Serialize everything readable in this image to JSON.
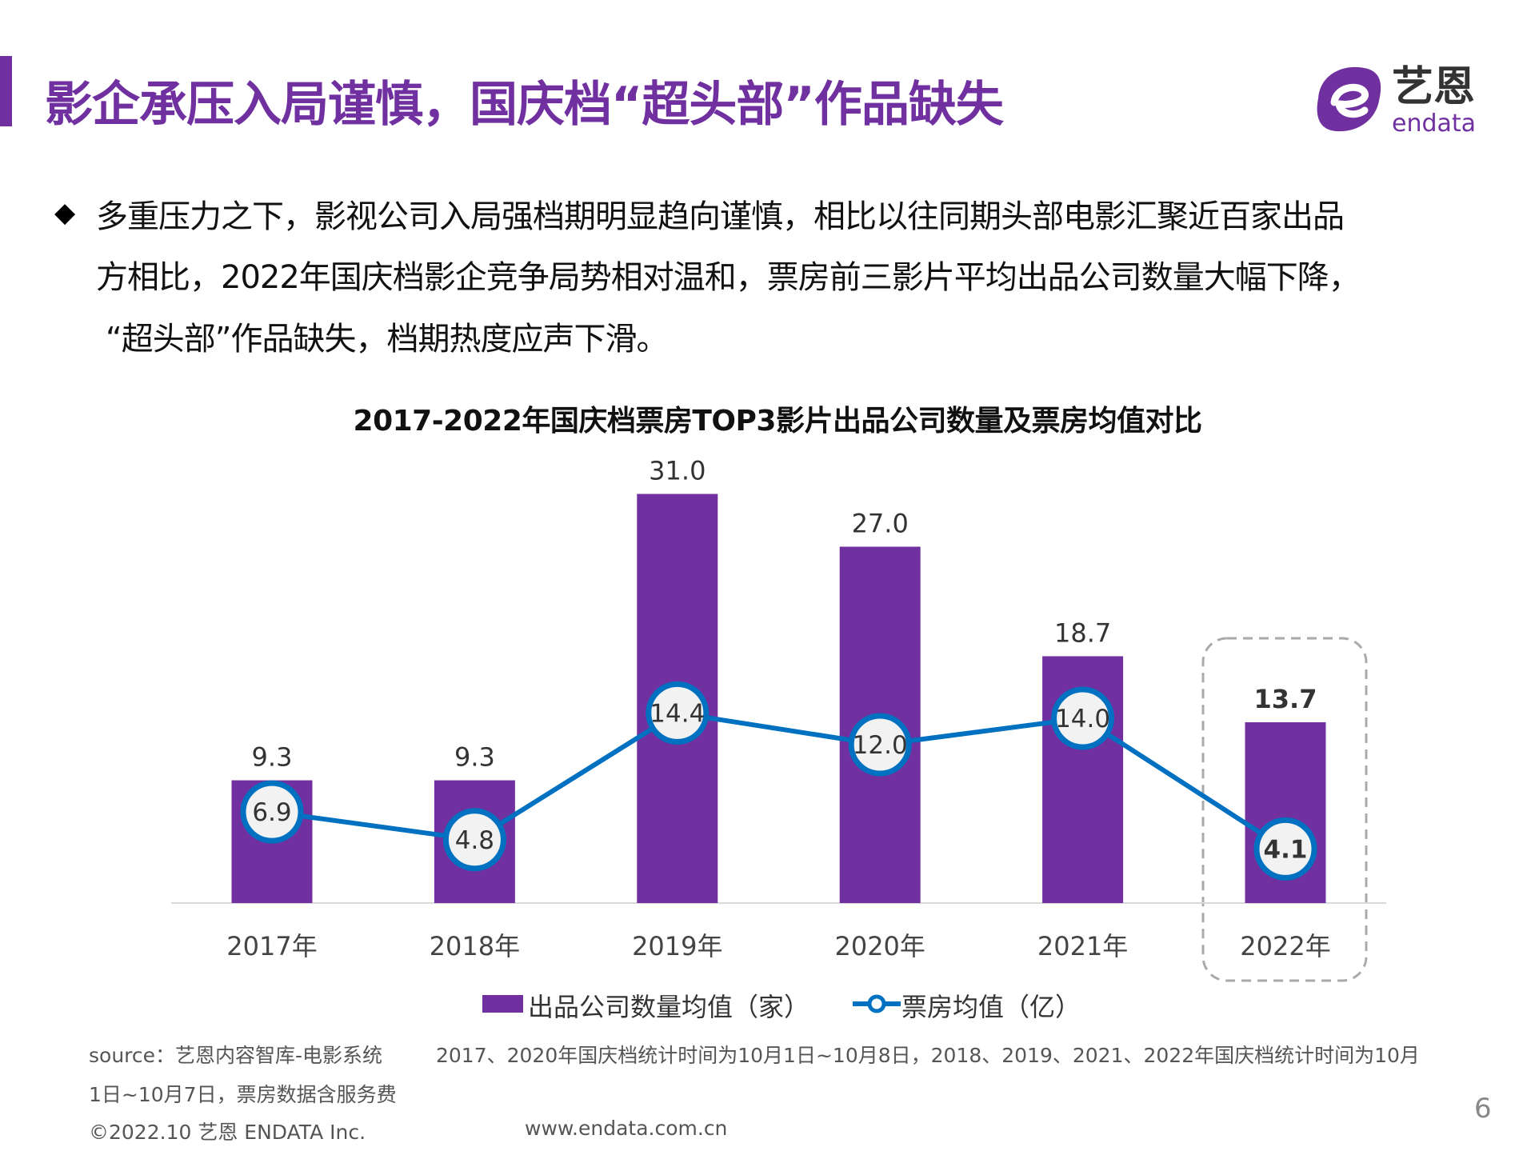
{
  "header": {
    "title": "影企承压入局谨慎，国庆档“超头部”作品缺失",
    "logo_text_cn": "艺恩",
    "logo_text_en": "endata"
  },
  "bullet": {
    "icon": "diamond-icon",
    "lines": [
      "多重压力之下，影视公司入局强档期明显趋向谨慎，相比以往同期头部电影汇聚近百家出品",
      "方相比，2022年国庆档影企竞争局势相对温和，票房前三影片平均出品公司数量大幅下降，",
      "“超头部”作品缺失，档期热度应声下滑。"
    ]
  },
  "chart_data": {
    "type": "bar+line",
    "title": "2017-2022年国庆档票房TOP3影片出品公司数量及票房均值对比",
    "categories": [
      "2017年",
      "2018年",
      "2019年",
      "2020年",
      "2021年",
      "2022年"
    ],
    "series": [
      {
        "name": "出品公司数量均值（家）",
        "type": "bar",
        "color": "#7030A0",
        "values": [
          9.3,
          9.3,
          31.0,
          27.0,
          18.7,
          13.7
        ],
        "labels": [
          "9.3",
          "9.3",
          "31.0",
          "27.0",
          "18.7",
          "13.7"
        ]
      },
      {
        "name": "票房均值（亿）",
        "type": "line",
        "color": "#0070C0",
        "values": [
          6.9,
          4.8,
          14.4,
          12.0,
          14.0,
          4.1
        ],
        "labels": [
          "6.9",
          "4.8",
          "14.4",
          "12.0",
          "14.0",
          "4.1"
        ]
      }
    ],
    "ylim": [
      0,
      31
    ],
    "grid": false,
    "legend": "bottom",
    "highlight_category": "2022年"
  },
  "footer": {
    "source": "source：艺恩内容智库-电影系统",
    "note_line1": "2017、2020年国庆档统计时间为10月1日~10月8日，2018、2019、2021、2022年国庆档统计时间为10月",
    "note_line2": "1日~10月7日，票房数据含服务费",
    "copyright": "©2022.10 艺恩 ENDATA Inc.",
    "website": "www.endata.com.cn",
    "page_number": "6"
  }
}
